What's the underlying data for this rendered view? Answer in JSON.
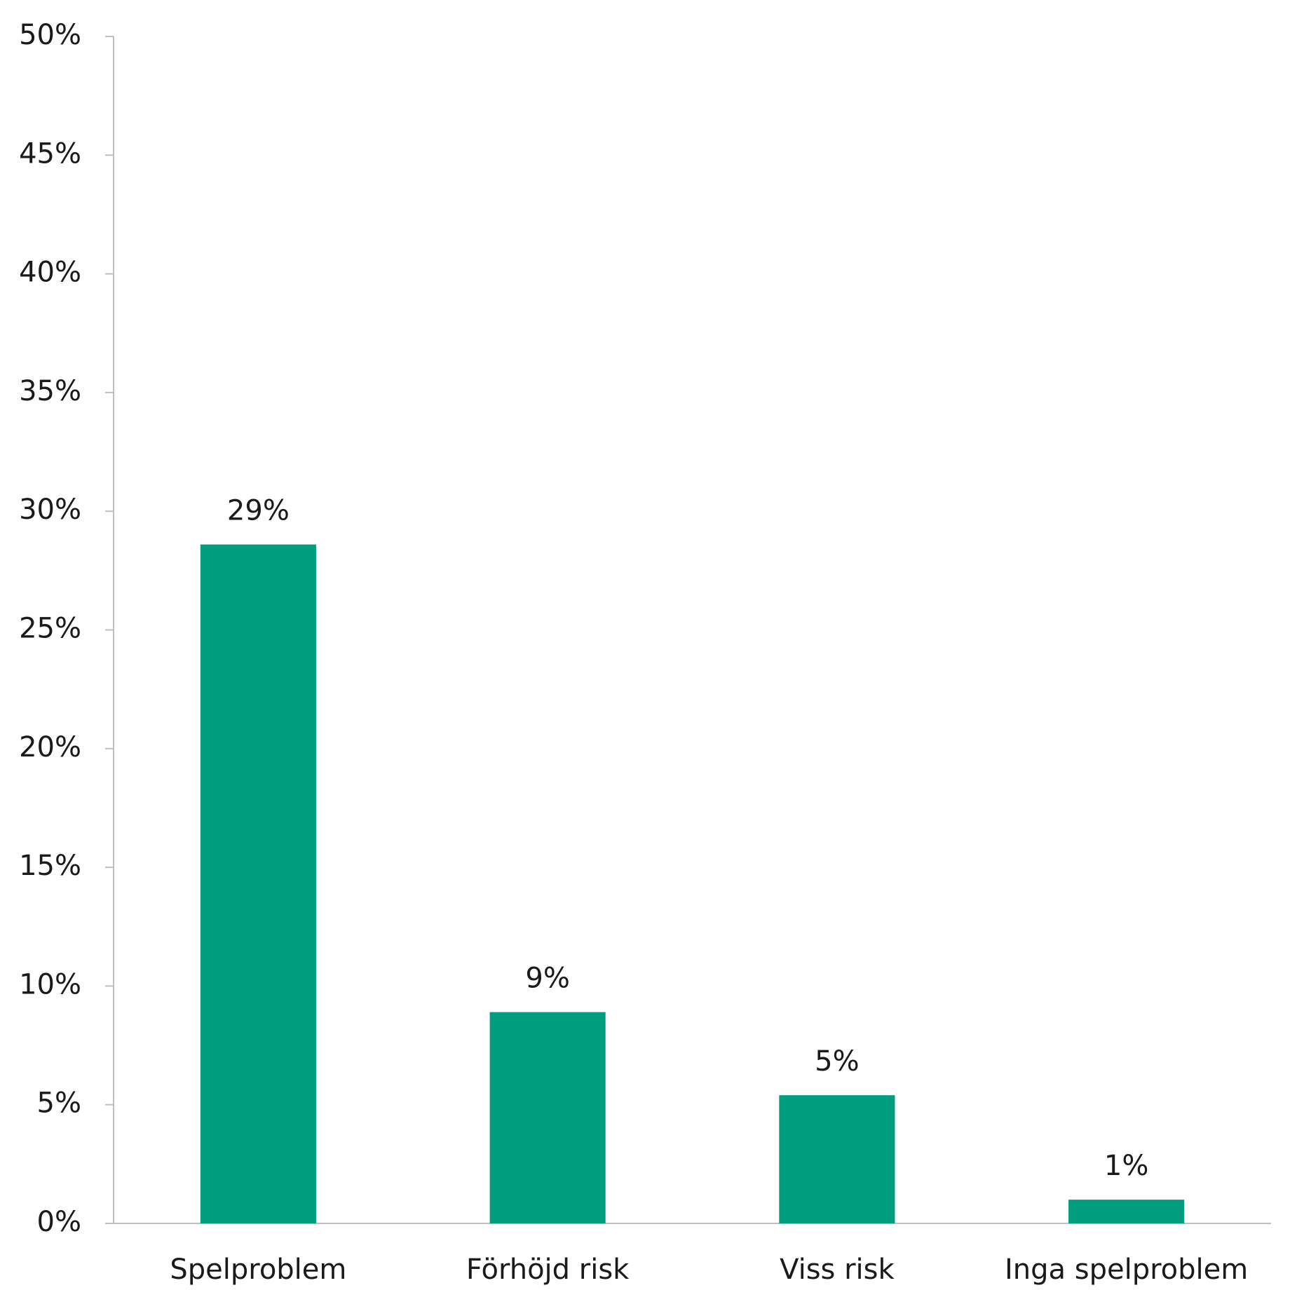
{
  "chart_data": {
    "type": "bar",
    "categories": [
      "Spelproblem",
      "Förhöjd risk",
      "Viss risk",
      "Inga spelproblem"
    ],
    "values": [
      28.6,
      8.9,
      5.4,
      1.0
    ],
    "value_labels": [
      "29%",
      "9%",
      "5%",
      "1%"
    ],
    "color": "#009e7e",
    "ylim": [
      0,
      50
    ],
    "yticks": [
      {
        "value": 0,
        "label": "0%"
      },
      {
        "value": 5,
        "label": "5%"
      },
      {
        "value": 10,
        "label": "10%"
      },
      {
        "value": 15,
        "label": "15%"
      },
      {
        "value": 20,
        "label": "20%"
      },
      {
        "value": 25,
        "label": "25%"
      },
      {
        "value": 30,
        "label": "30%"
      },
      {
        "value": 35,
        "label": "35%"
      },
      {
        "value": 40,
        "label": "40%"
      },
      {
        "value": 45,
        "label": "45%"
      },
      {
        "value": 50,
        "label": "50%"
      }
    ]
  }
}
